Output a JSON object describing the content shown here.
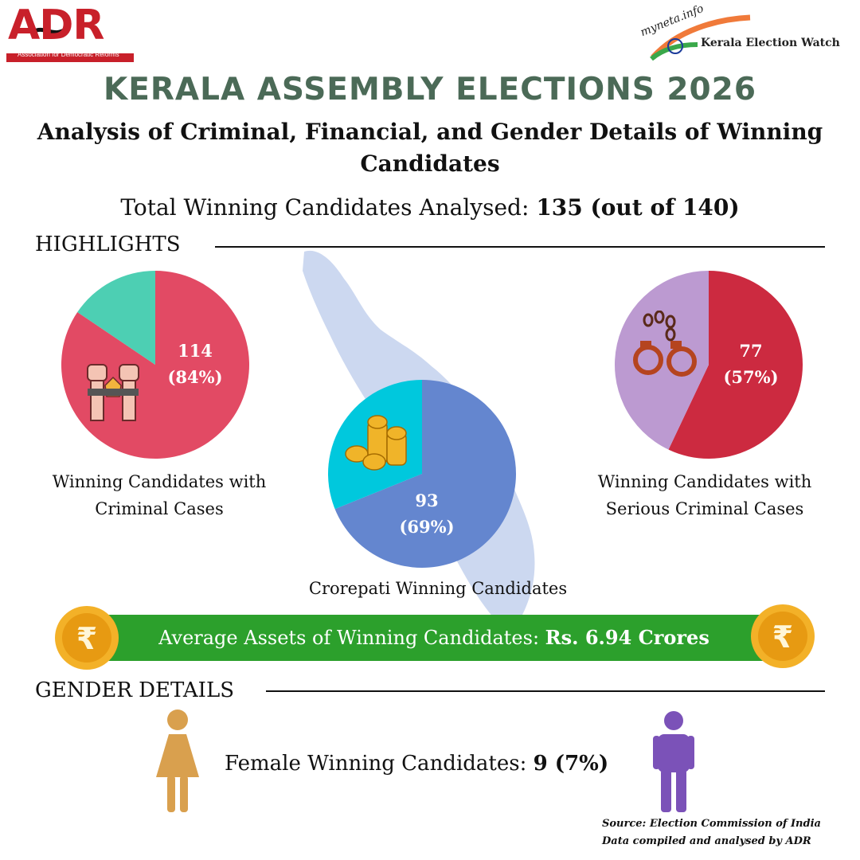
{
  "header": {
    "adr_logo_text": "ADR",
    "adr_logo_subtext": "Association for Democratic Reforms",
    "myneta_logo_text": "myneta.info",
    "myneta_logo_subtext": "Kerala Election Watch",
    "title": "KERALA ASSEMBLY ELECTIONS 2026",
    "subtitle": "Analysis of Criminal, Financial, and Gender Details of Winning Candidates",
    "total_label": "Total Winning Candidates Analysed:",
    "total_value": "135 (out of 140)"
  },
  "highlights": {
    "heading": "HIGHLIGHTS",
    "criminal_caption": "Winning Candidates with Criminal Cases",
    "serious_caption": "Winning Candidates with Serious Criminal Cases",
    "crorepati_caption": "Crorepati Winning Candidates"
  },
  "assets": {
    "label": "Average Assets of Winning Candidates:",
    "value": "Rs. 6.94 Crores"
  },
  "gender": {
    "heading": "GENDER DETAILS",
    "female_label": "Female Winning Candidates:",
    "female_value": "9 (7%)"
  },
  "source": {
    "line1": "Source: Election Commission of India",
    "line2": "Data compiled and analysed by ADR"
  },
  "colors": {
    "title_green": "#4b6a57",
    "criminal_main": "#e24a64",
    "criminal_rest": "#4dcfb3",
    "crorepati_main": "#6486cf",
    "crorepati_rest": "#00c8dd",
    "serious_main": "#cc2a40",
    "serious_rest": "#bc9ad1",
    "banner_green": "#2ca02c",
    "female_icon": "#d9a04e",
    "male_icon": "#7b52b8",
    "map_fill": "#ccd8f0"
  },
  "chart_data": [
    {
      "type": "pie",
      "title": "Winning Candidates with Criminal Cases",
      "total": 135,
      "slices": [
        {
          "value": 114,
          "label_count": "114",
          "label_pct": "(84%)",
          "color": "#e24a64"
        },
        {
          "value": 21,
          "color": "#4dcfb3"
        }
      ]
    },
    {
      "type": "pie",
      "title": "Crorepati Winning Candidates",
      "total": 135,
      "slices": [
        {
          "value": 93,
          "label_count": "93",
          "label_pct": "(69%)",
          "color": "#6486cf"
        },
        {
          "value": 42,
          "color": "#00c8dd"
        }
      ]
    },
    {
      "type": "pie",
      "title": "Winning Candidates with Serious Criminal Cases",
      "total": 135,
      "slices": [
        {
          "value": 77,
          "label_count": "77",
          "label_pct": "(57%)",
          "color": "#cc2a40"
        },
        {
          "value": 58,
          "color": "#bc9ad1"
        }
      ]
    }
  ]
}
